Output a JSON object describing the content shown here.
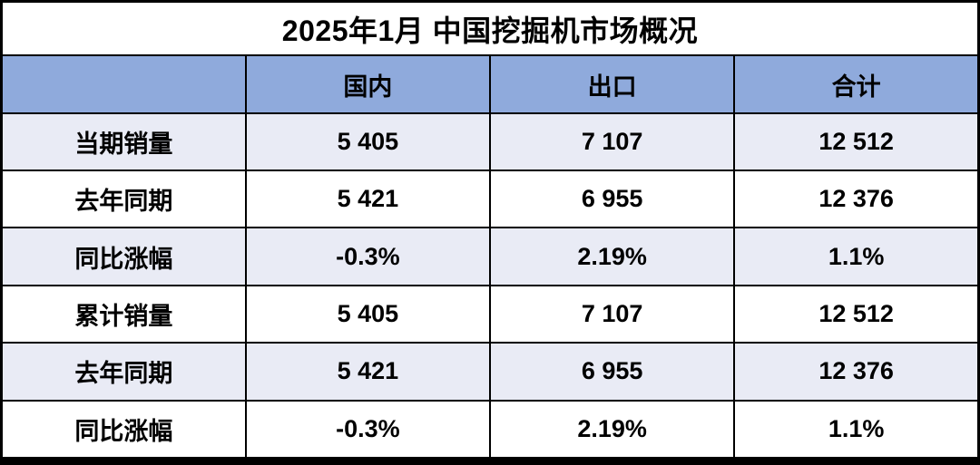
{
  "title": "2025年1月 中国挖掘机市场概况",
  "colors": {
    "header_bg": "#8FAADC",
    "stripe_bg": "#E9EBF5",
    "plain_bg": "#FFFFFF",
    "border": "#000000",
    "text": "#000000"
  },
  "table": {
    "columns": {
      "c0": "",
      "c1": "国内",
      "c2": "出口",
      "c3": "合计"
    },
    "rows": [
      {
        "label": "当期销量",
        "values": [
          "5 405",
          "7 107",
          "12 512"
        ]
      },
      {
        "label": "去年同期",
        "values": [
          "5 421",
          "6 955",
          "12 376"
        ]
      },
      {
        "label": "同比涨幅",
        "values": [
          "-0.3%",
          "2.19%",
          "1.1%"
        ]
      },
      {
        "label": "累计销量",
        "values": [
          "5 405",
          "7 107",
          "12 512"
        ]
      },
      {
        "label": "去年同期",
        "values": [
          "5 421",
          "6 955",
          "12 376"
        ]
      },
      {
        "label": "同比涨幅",
        "values": [
          "-0.3%",
          "2.19%",
          "1.1%"
        ]
      }
    ]
  },
  "chart_data": {
    "type": "table",
    "title": "2025年1月 中国挖掘机市场概况",
    "columns": [
      "国内",
      "出口",
      "合计"
    ],
    "row_labels": [
      "当期销量",
      "去年同期",
      "同比涨幅",
      "累计销量",
      "去年同期",
      "同比涨幅"
    ],
    "rows": [
      [
        "5 405",
        "7 107",
        "12 512"
      ],
      [
        "5 421",
        "6 955",
        "12 376"
      ],
      [
        "-0.3%",
        "2.19%",
        "1.1%"
      ],
      [
        "5 405",
        "7 107",
        "12 512"
      ],
      [
        "5 421",
        "6 955",
        "12 376"
      ],
      [
        "-0.3%",
        "2.19%",
        "1.1%"
      ]
    ],
    "notes": "当期销量 and 累计销量 blocks repeat identical Jan-2025 values; numbers use thin-space thousands separator"
  }
}
